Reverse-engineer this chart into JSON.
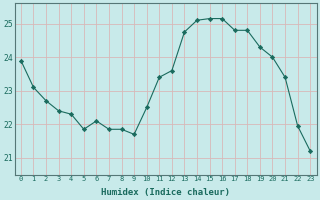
{
  "x": [
    0,
    1,
    2,
    3,
    4,
    5,
    6,
    7,
    8,
    9,
    10,
    11,
    12,
    13,
    14,
    15,
    16,
    17,
    18,
    19,
    20,
    21,
    22,
    23
  ],
  "y": [
    23.9,
    23.1,
    22.7,
    22.4,
    22.3,
    21.85,
    22.1,
    21.85,
    21.85,
    21.7,
    22.5,
    23.4,
    23.6,
    24.75,
    25.1,
    25.15,
    25.15,
    24.8,
    24.8,
    24.3,
    24.0,
    23.4,
    21.95,
    21.2
  ],
  "line_color": "#1a6b5e",
  "marker": "D",
  "marker_size": 2.2,
  "bg_color": "#c8eaea",
  "grid_color_major": "#d8b8b8",
  "grid_color_minor": "#d8b8b8",
  "xlabel": "Humidex (Indice chaleur)",
  "yticks": [
    21,
    22,
    23,
    24,
    25
  ],
  "xtick_labels": [
    "0",
    "1",
    "2",
    "3",
    "4",
    "5",
    "6",
    "7",
    "8",
    "9",
    "10",
    "11",
    "12",
    "13",
    "14",
    "15",
    "16",
    "17",
    "18",
    "19",
    "20",
    "21",
    "22",
    "23"
  ],
  "ylim": [
    20.5,
    25.6
  ],
  "xlim": [
    -0.5,
    23.5
  ],
  "ylabel_fontsize": 6.0,
  "xlabel_fontsize": 6.5,
  "xtick_fontsize": 5.0,
  "ytick_fontsize": 5.8
}
